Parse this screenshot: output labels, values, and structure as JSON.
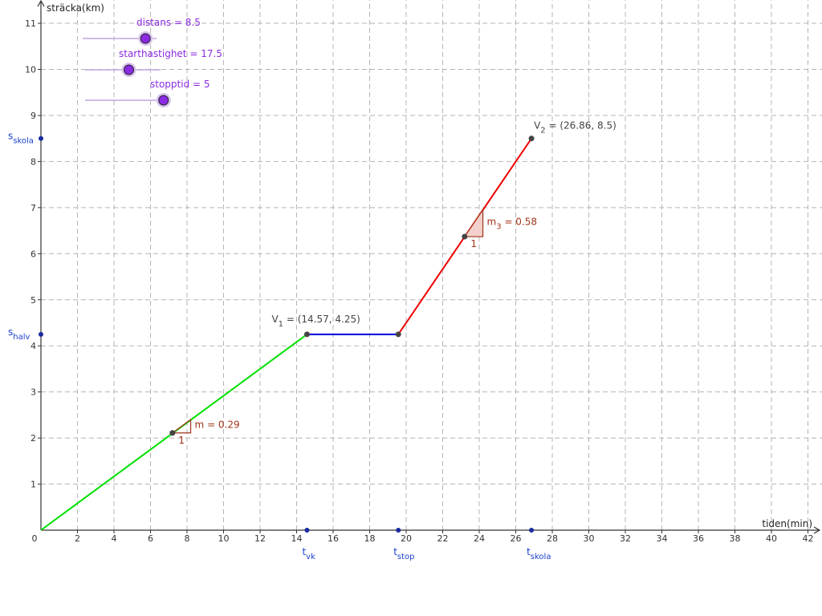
{
  "chart_data": {
    "type": "line",
    "xlabel": "tiden(min)",
    "ylabel": "sträcka(km)",
    "xlim": [
      0,
      43
    ],
    "ylim": [
      0,
      11.5
    ],
    "x_ticks": [
      "0",
      "2",
      "4",
      "6",
      "8",
      "10",
      "12",
      "14",
      "16",
      "18",
      "20",
      "22",
      "24",
      "26",
      "28",
      "30",
      "32",
      "34",
      "36",
      "38",
      "40",
      "42"
    ],
    "y_ticks": [
      "1",
      "2",
      "3",
      "4",
      "5",
      "6",
      "7",
      "8",
      "9",
      "10",
      "11"
    ],
    "grid": true,
    "segments": [
      {
        "color": "#00e000",
        "points": [
          [
            0,
            0
          ],
          [
            14.57,
            4.25
          ]
        ]
      },
      {
        "color": "#0000dd",
        "points": [
          [
            14.57,
            4.25
          ],
          [
            19.57,
            4.25
          ]
        ]
      },
      {
        "color": "#ee0000",
        "points": [
          [
            19.57,
            4.25
          ],
          [
            26.86,
            8.5
          ]
        ]
      }
    ],
    "sliders": [
      {
        "label": "distans = 8.5",
        "fraction": 0.85
      },
      {
        "label": "starthastighet = 17.5",
        "fraction": 0.58
      },
      {
        "label": "stopptid = 5",
        "fraction": 0.94
      }
    ],
    "points": {
      "V1": {
        "name": "V",
        "sub": "1",
        "value": " = (14.57, 4.25)",
        "x": 14.57,
        "y": 4.25
      },
      "V2": {
        "name": "V",
        "sub": "2",
        "value": " = (26.86, 8.5)",
        "x": 26.86,
        "y": 8.5
      }
    },
    "axis_markers": {
      "s_skola": {
        "name": "s",
        "sub": "skola",
        "y": 8.5
      },
      "s_halv": {
        "name": "s",
        "sub": "halv",
        "y": 4.25
      },
      "t_vk": {
        "name": "t",
        "sub": "vk",
        "x": 14.57
      },
      "t_stop": {
        "name": "t",
        "sub": "stop",
        "x": 19.57
      },
      "t_skola": {
        "name": "t",
        "sub": "skola",
        "x": 26.86
      }
    },
    "slopes": [
      {
        "name": "m",
        "sub": "",
        "value": " = 0.29",
        "run_label": "1",
        "x": 7.2,
        "y": 2.11,
        "slope": 0.29,
        "fill": false
      },
      {
        "name": "m",
        "sub": "3",
        "value": " = 0.58",
        "run_label": "1",
        "x": 23.2,
        "y": 6.37,
        "slope": 0.58,
        "fill": true
      }
    ],
    "colors": {
      "grid": "#b4b4b4",
      "axis": "#333333",
      "slider": "#8a2be2",
      "marker": "#1a3fcf",
      "slope": "#a0341a",
      "slope_fill": "#f3d0cc"
    }
  }
}
